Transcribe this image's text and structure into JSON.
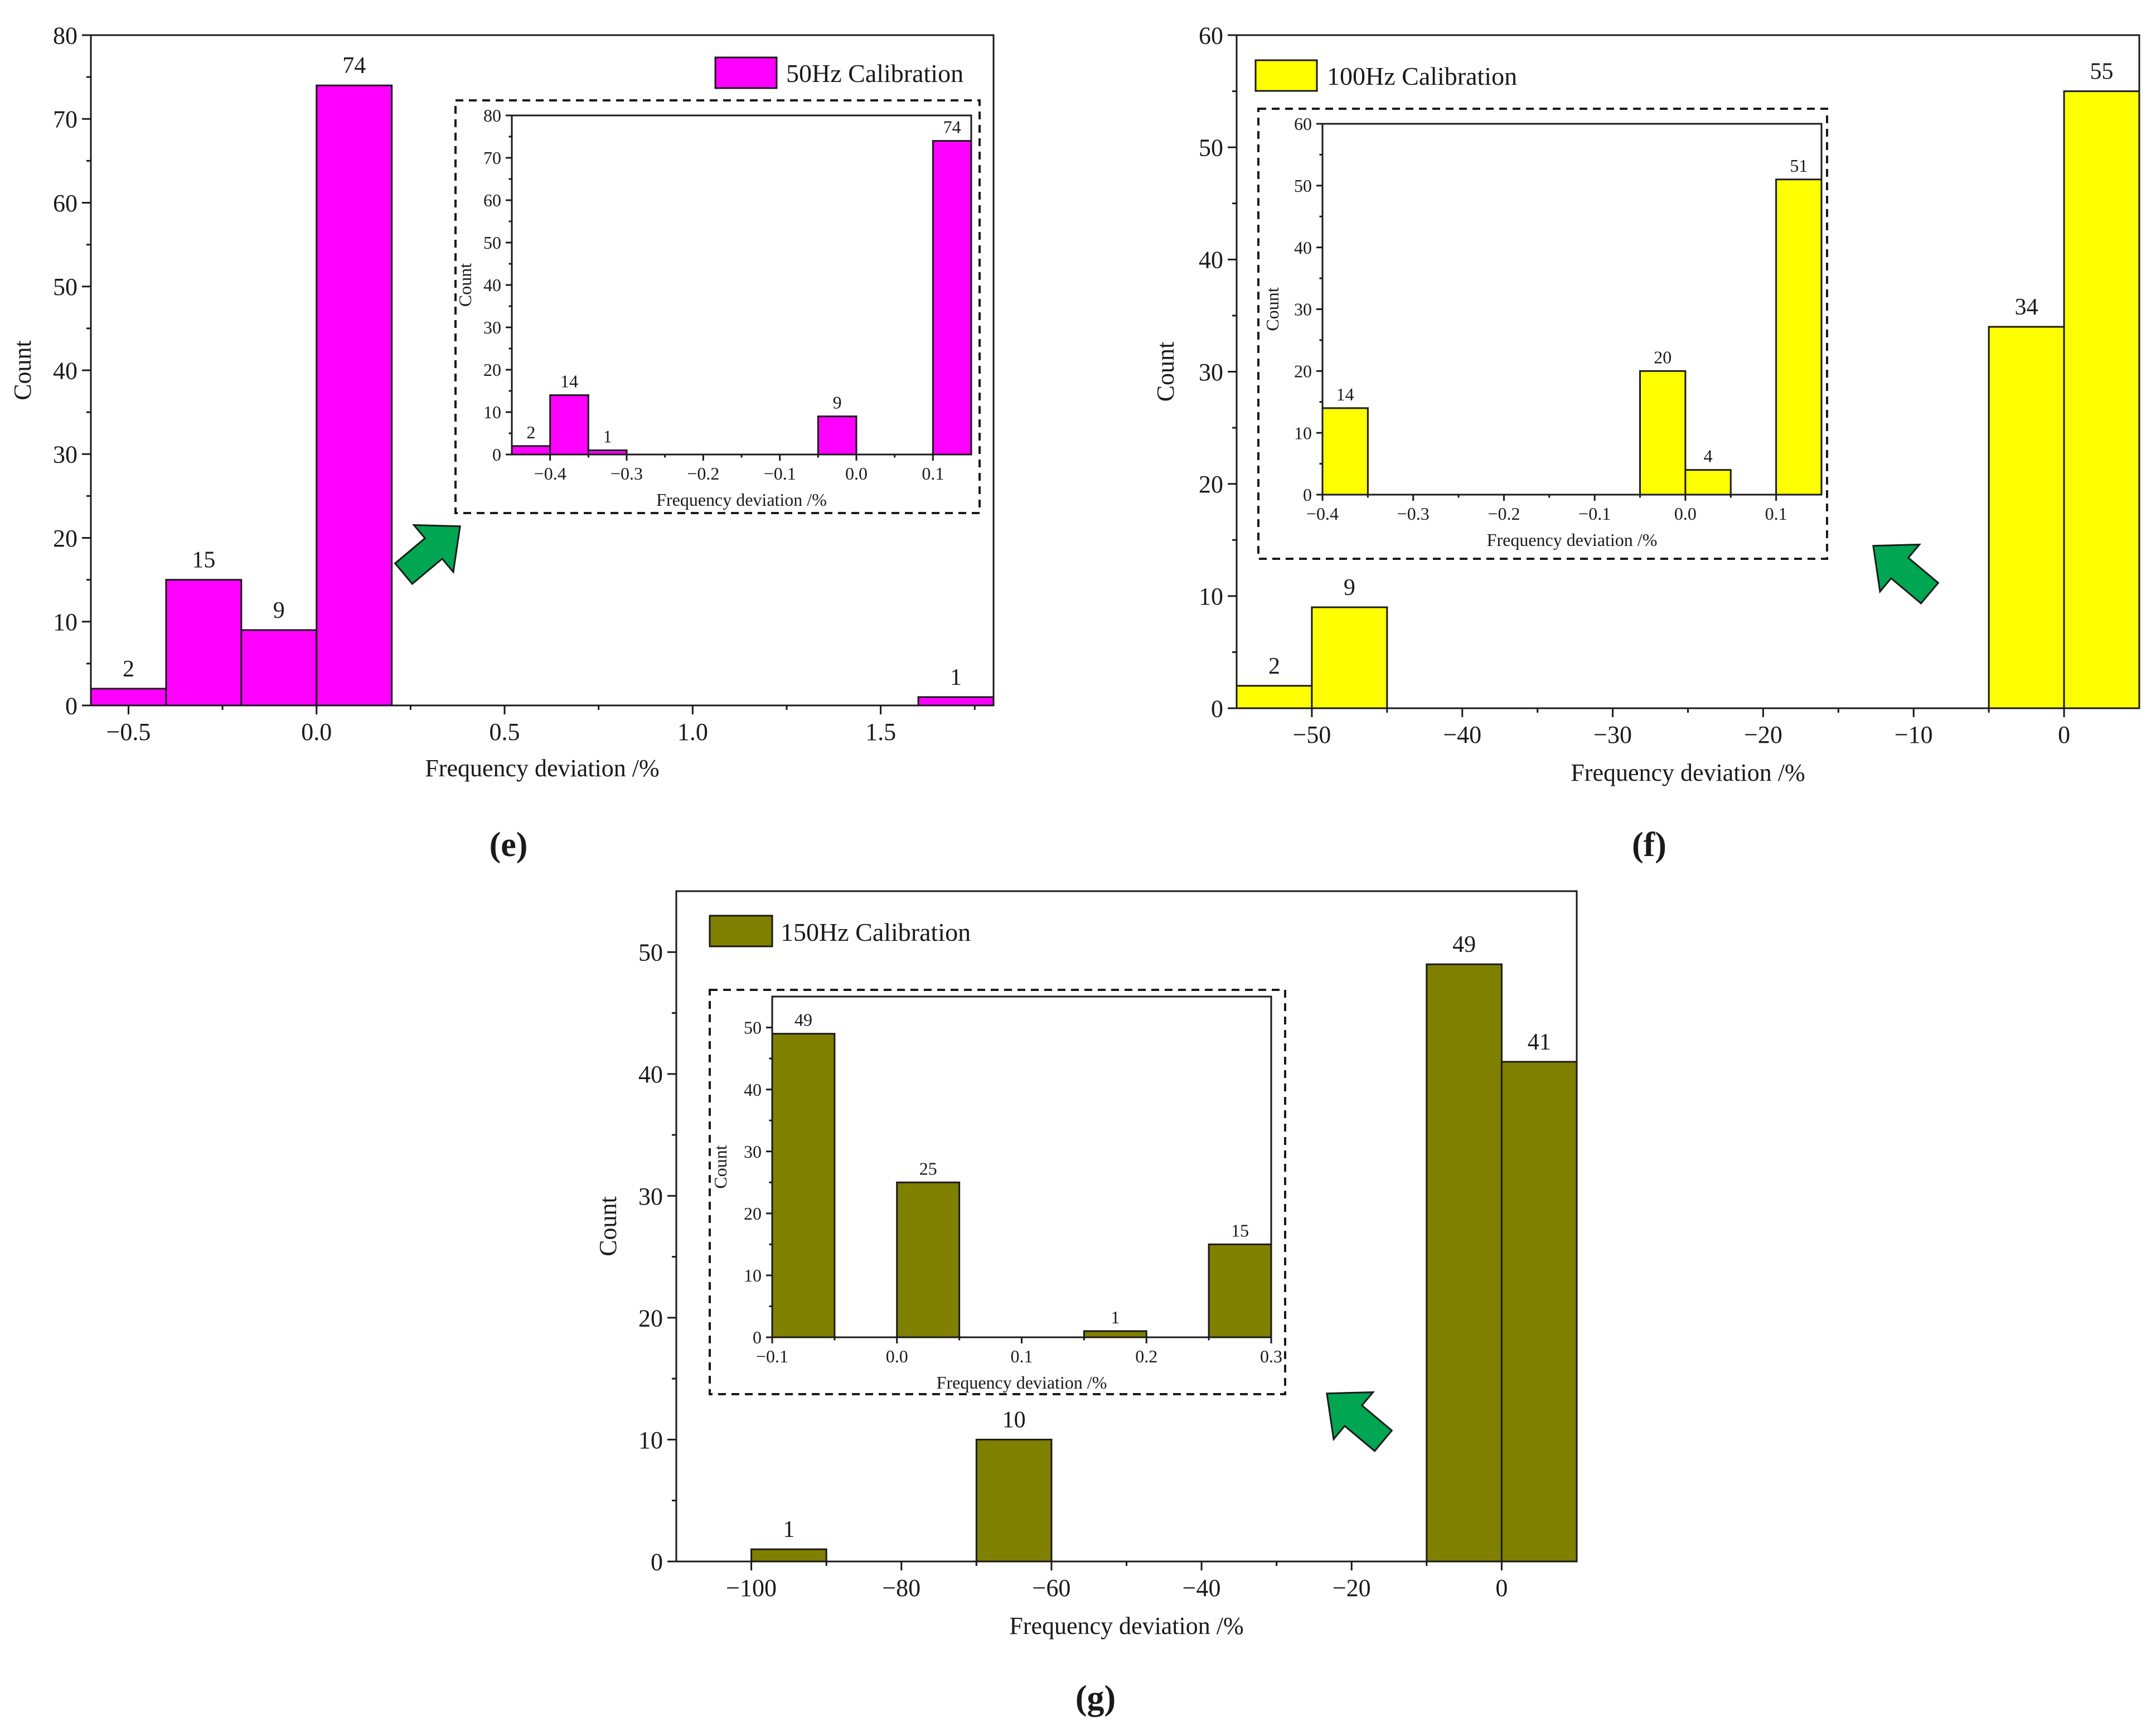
{
  "chart_data": [
    {
      "panel_label": "(e)",
      "type": "bar",
      "legend": "50Hz Calibration",
      "legend_position": "top-right",
      "color": "#ff00ff",
      "xlabel": "Frequency deviation /%",
      "ylabel": "Count",
      "xlim": [
        -0.6,
        1.8
      ],
      "ylim": [
        0,
        80
      ],
      "xticks": [
        -0.5,
        0.0,
        0.5,
        1.0,
        1.5
      ],
      "xtick_labels": [
        "−0.5",
        "0.0",
        "0.5",
        "1.0",
        "1.5"
      ],
      "yticks": [
        0,
        10,
        20,
        30,
        40,
        50,
        60,
        70,
        80
      ],
      "ytick_labels": [
        "0",
        "10",
        "20",
        "30",
        "40",
        "50",
        "60",
        "70",
        "80"
      ],
      "bins": [
        {
          "x0": -0.6,
          "x1": -0.4,
          "value": 2
        },
        {
          "x0": -0.4,
          "x1": -0.2,
          "value": 15
        },
        {
          "x0": -0.2,
          "x1": 0.0,
          "value": 9
        },
        {
          "x0": 0.0,
          "x1": 0.2,
          "value": 74
        },
        {
          "x0": 1.6,
          "x1": 1.8,
          "value": 1
        }
      ],
      "inset": {
        "xlabel": "Frequency deviation /%",
        "ylabel": "Count",
        "xlim": [
          -0.45,
          0.15
        ],
        "ylim": [
          0,
          80
        ],
        "xticks": [
          -0.4,
          -0.3,
          -0.2,
          -0.1,
          0.0,
          0.1
        ],
        "xtick_labels": [
          "−0.4",
          "−0.3",
          "−0.2",
          "−0.1",
          "0.0",
          "0.1"
        ],
        "yticks": [
          0,
          10,
          20,
          30,
          40,
          50,
          60,
          70,
          80
        ],
        "ytick_labels": [
          "0",
          "10",
          "20",
          "30",
          "40",
          "50",
          "60",
          "70",
          "80"
        ],
        "bins": [
          {
            "x0": -0.45,
            "x1": -0.4,
            "value": 2
          },
          {
            "x0": -0.4,
            "x1": -0.35,
            "value": 14
          },
          {
            "x0": -0.35,
            "x1": -0.3,
            "value": 1
          },
          {
            "x0": -0.05,
            "x1": 0.0,
            "value": 9
          },
          {
            "x0": 0.1,
            "x1": 0.15,
            "value": 74
          }
        ]
      }
    },
    {
      "panel_label": "(f)",
      "type": "bar",
      "legend": "100Hz Calibration",
      "legend_position": "top-left",
      "color": "#ffff00",
      "xlabel": "Frequency deviation /%",
      "ylabel": "Count",
      "xlim": [
        -55,
        5
      ],
      "ylim": [
        0,
        60
      ],
      "xticks": [
        -50,
        -40,
        -30,
        -20,
        -10,
        0
      ],
      "xtick_labels": [
        "−50",
        "−40",
        "−30",
        "−20",
        "−10",
        "0"
      ],
      "yticks": [
        0,
        10,
        20,
        30,
        40,
        50,
        60
      ],
      "ytick_labels": [
        "0",
        "10",
        "20",
        "30",
        "40",
        "50",
        "60"
      ],
      "bins": [
        {
          "x0": -55,
          "x1": -50,
          "value": 2
        },
        {
          "x0": -50,
          "x1": -45,
          "value": 9
        },
        {
          "x0": -5,
          "x1": 0,
          "value": 34
        },
        {
          "x0": 0,
          "x1": 5,
          "value": 55
        }
      ],
      "inset": {
        "xlabel": "Frequency deviation /%",
        "ylabel": "Count",
        "xlim": [
          -0.4,
          0.15
        ],
        "ylim": [
          0,
          60
        ],
        "xticks": [
          -0.4,
          -0.3,
          -0.2,
          -0.1,
          0.0,
          0.1
        ],
        "xtick_labels": [
          "−0.4",
          "−0.3",
          "−0.2",
          "−0.1",
          "0.0",
          "0.1"
        ],
        "yticks": [
          0,
          10,
          20,
          30,
          40,
          50,
          60
        ],
        "ytick_labels": [
          "0",
          "10",
          "20",
          "30",
          "40",
          "50",
          "60"
        ],
        "bins": [
          {
            "x0": -0.4,
            "x1": -0.35,
            "value": 14
          },
          {
            "x0": -0.05,
            "x1": 0.0,
            "value": 20
          },
          {
            "x0": 0.0,
            "x1": 0.05,
            "value": 4
          },
          {
            "x0": 0.1,
            "x1": 0.15,
            "value": 51
          }
        ]
      }
    },
    {
      "panel_label": "(g)",
      "type": "bar",
      "legend": "150Hz Calibration",
      "legend_position": "top-left",
      "color": "#808000",
      "xlabel": "Frequency deviation /%",
      "ylabel": "Count",
      "xlim": [
        -110,
        10
      ],
      "ylim": [
        0,
        55
      ],
      "xticks": [
        -100,
        -80,
        -60,
        -40,
        -20,
        0
      ],
      "xtick_labels": [
        "−100",
        "−80",
        "−60",
        "−40",
        "−20",
        "0"
      ],
      "yticks": [
        0,
        10,
        20,
        30,
        40,
        50
      ],
      "ytick_labels": [
        "0",
        "10",
        "20",
        "30",
        "40",
        "50"
      ],
      "bins": [
        {
          "x0": -100,
          "x1": -90,
          "value": 1
        },
        {
          "x0": -70,
          "x1": -60,
          "value": 10
        },
        {
          "x0": -10,
          "x1": 0,
          "value": 49
        },
        {
          "x0": 0,
          "x1": 10,
          "value": 41
        }
      ],
      "inset": {
        "xlabel": "Frequency deviation /%",
        "ylabel": "Count",
        "xlim": [
          -0.1,
          0.3
        ],
        "ylim": [
          0,
          55
        ],
        "xticks": [
          -0.1,
          0.0,
          0.1,
          0.2,
          0.3
        ],
        "xtick_labels": [
          "−0.1",
          "0.0",
          "0.1",
          "0.2",
          "0.3"
        ],
        "yticks": [
          0,
          10,
          20,
          30,
          40,
          50
        ],
        "ytick_labels": [
          "0",
          "10",
          "20",
          "30",
          "40",
          "50"
        ],
        "bins": [
          {
            "x0": -0.1,
            "x1": -0.05,
            "value": 49
          },
          {
            "x0": 0.0,
            "x1": 0.05,
            "value": 25
          },
          {
            "x0": 0.15,
            "x1": 0.2,
            "value": 1
          },
          {
            "x0": 0.25,
            "x1": 0.3,
            "value": 15
          }
        ]
      }
    }
  ],
  "arrow_color": "#00a651"
}
